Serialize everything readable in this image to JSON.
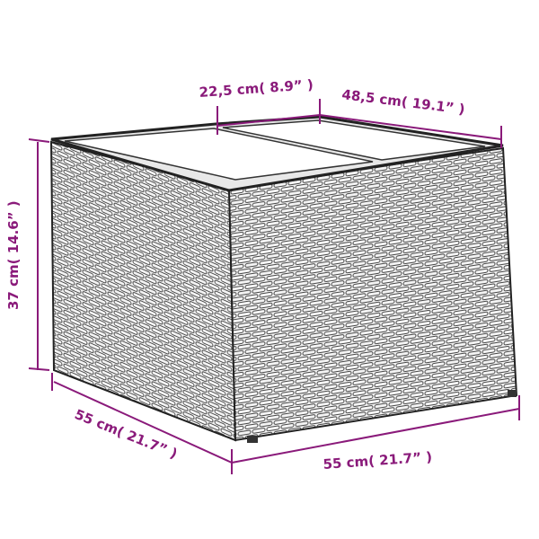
{
  "colors": {
    "dimension": "#8a1a7a",
    "outline": "#1a1a1a",
    "background": "#ffffff"
  },
  "product": "rattan storage table with two-panel glass top",
  "dimensions": {
    "top_left": "22,5 cm( 8.9” )",
    "top_right": "48,5 cm( 19.1” )",
    "height": "37 cm( 14.6” )",
    "depth": "55 cm( 21.7” )",
    "width": "55 cm( 21.7” )"
  }
}
